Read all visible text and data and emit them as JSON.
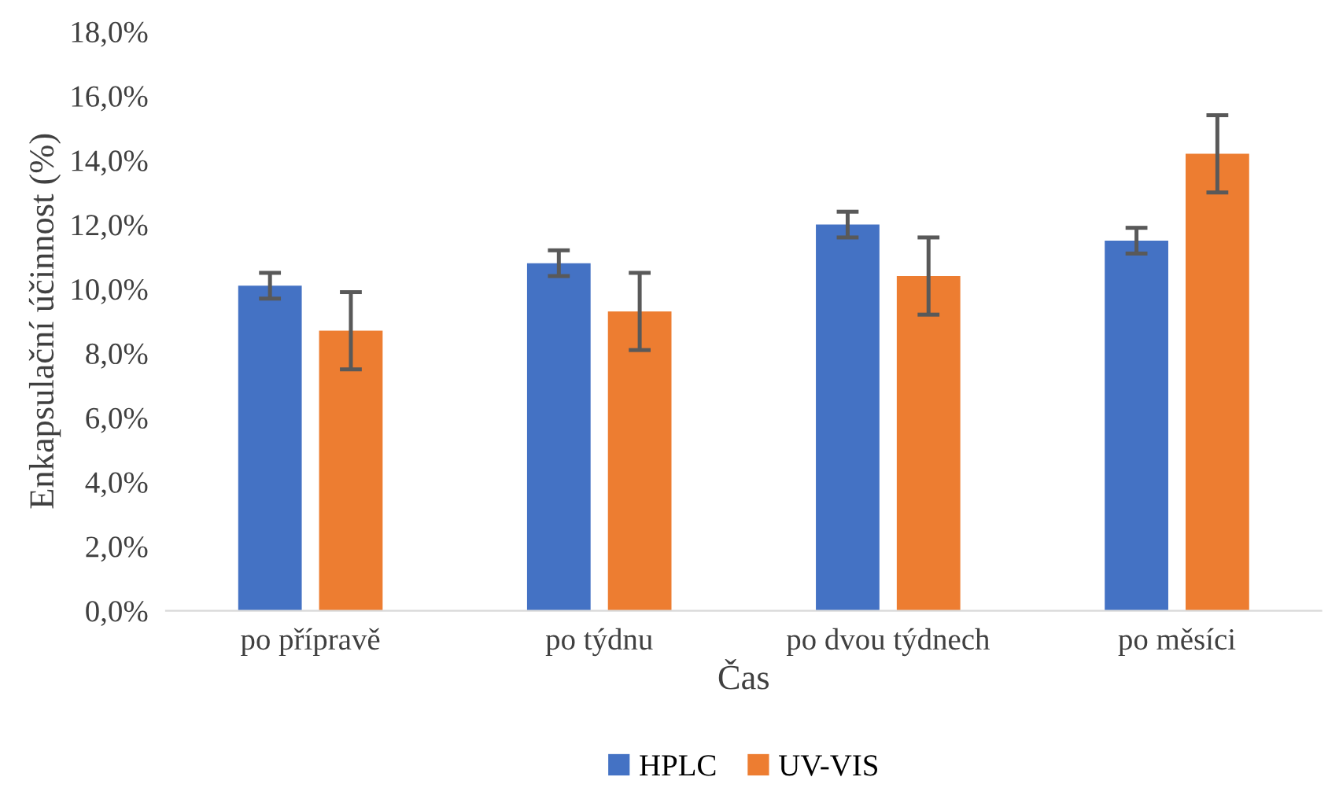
{
  "chart_data": {
    "type": "bar",
    "xlabel": "Čas",
    "ylabel": "Enkapsulační účinnost (%)",
    "categories": [
      "po přípravě",
      "po týdnu",
      "po dvou týdnech",
      "po měsíci"
    ],
    "series": [
      {
        "name": "HPLC",
        "color": "#4472c4",
        "values": [
          10.1,
          10.8,
          12.0,
          11.5
        ],
        "errors": [
          0.4,
          0.4,
          0.4,
          0.4
        ]
      },
      {
        "name": "UV-VIS",
        "color": "#ed7d31",
        "values": [
          8.7,
          9.3,
          10.4,
          14.2
        ],
        "errors": [
          1.2,
          1.2,
          1.2,
          1.2
        ]
      }
    ],
    "ylim": [
      0,
      18
    ],
    "yticks": [
      {
        "value": 0,
        "label": "0,0%"
      },
      {
        "value": 2,
        "label": "2,0%"
      },
      {
        "value": 4,
        "label": "4,0%"
      },
      {
        "value": 6,
        "label": "6,0%"
      },
      {
        "value": 8,
        "label": "8,0%"
      },
      {
        "value": 10,
        "label": "10,0%"
      },
      {
        "value": 12,
        "label": "12,0%"
      },
      {
        "value": 14,
        "label": "14,0%"
      },
      {
        "value": 16,
        "label": "16,0%"
      },
      {
        "value": 18,
        "label": "18,0%"
      }
    ],
    "legend": "bottom",
    "grid": false
  }
}
